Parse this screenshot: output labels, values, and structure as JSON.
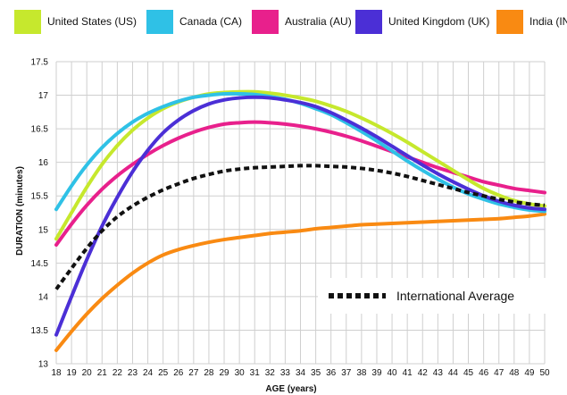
{
  "chart_data": {
    "type": "line",
    "title": "",
    "xlabel": "AGE (years)",
    "ylabel": "DURATION (minutes)",
    "xlim": [
      18,
      50
    ],
    "ylim": [
      13,
      17.5
    ],
    "x_ticks": [
      18,
      19,
      20,
      21,
      22,
      23,
      24,
      25,
      26,
      27,
      28,
      29,
      30,
      31,
      32,
      33,
      34,
      35,
      36,
      37,
      38,
      39,
      40,
      41,
      42,
      43,
      44,
      45,
      46,
      47,
      48,
      49,
      50
    ],
    "y_ticks": [
      "13",
      "13.5",
      "14",
      "14.5",
      "15",
      "15.5",
      "16",
      "16.5",
      "17",
      "17.5"
    ],
    "grid": true,
    "legend_position": "top",
    "x": [
      18,
      19,
      20,
      21,
      22,
      23,
      24,
      25,
      26,
      27,
      28,
      29,
      30,
      31,
      32,
      33,
      34,
      35,
      36,
      37,
      38,
      39,
      40,
      41,
      42,
      43,
      44,
      45,
      46,
      47,
      48,
      49,
      50
    ],
    "series": [
      {
        "name": "United States (US)",
        "color": "#c6e82d",
        "style": "solid",
        "values": [
          14.86,
          15.25,
          15.63,
          15.97,
          16.25,
          16.48,
          16.66,
          16.8,
          16.9,
          16.97,
          17.02,
          17.04,
          17.05,
          17.05,
          17.03,
          17.0,
          16.96,
          16.91,
          16.84,
          16.76,
          16.66,
          16.55,
          16.43,
          16.3,
          16.16,
          16.02,
          15.88,
          15.74,
          15.61,
          15.51,
          15.43,
          15.38,
          15.35
        ]
      },
      {
        "name": "Canada (CA)",
        "color": "#2fc1e6",
        "style": "solid",
        "values": [
          15.3,
          15.65,
          15.96,
          16.22,
          16.43,
          16.6,
          16.73,
          16.83,
          16.91,
          16.97,
          17.0,
          17.02,
          17.02,
          17.01,
          16.98,
          16.94,
          16.88,
          16.8,
          16.71,
          16.59,
          16.46,
          16.32,
          16.17,
          16.02,
          15.88,
          15.75,
          15.63,
          15.53,
          15.45,
          15.38,
          15.33,
          15.29,
          15.27
        ]
      },
      {
        "name": "Australia (AU)",
        "color": "#e8208c",
        "style": "solid",
        "values": [
          14.77,
          15.08,
          15.36,
          15.6,
          15.8,
          15.97,
          16.12,
          16.25,
          16.36,
          16.45,
          16.52,
          16.57,
          16.59,
          16.6,
          16.59,
          16.57,
          16.54,
          16.5,
          16.45,
          16.39,
          16.32,
          16.24,
          16.16,
          16.08,
          16.0,
          15.92,
          15.85,
          15.78,
          15.71,
          15.66,
          15.61,
          15.58,
          15.55
        ]
      },
      {
        "name": "United Kingdom (UK)",
        "color": "#4b2fd6",
        "style": "solid",
        "values": [
          13.43,
          14.0,
          14.55,
          15.05,
          15.48,
          15.86,
          16.18,
          16.44,
          16.63,
          16.77,
          16.87,
          16.93,
          16.96,
          16.97,
          16.96,
          16.93,
          16.89,
          16.83,
          16.74,
          16.63,
          16.51,
          16.38,
          16.24,
          16.1,
          15.96,
          15.83,
          15.71,
          15.6,
          15.5,
          15.42,
          15.36,
          15.32,
          15.3
        ]
      },
      {
        "name": "India (IN)",
        "color": "#f98a12",
        "style": "solid",
        "values": [
          13.2,
          13.48,
          13.74,
          13.97,
          14.17,
          14.35,
          14.5,
          14.62,
          14.7,
          14.76,
          14.81,
          14.85,
          14.88,
          14.91,
          14.94,
          14.96,
          14.98,
          15.01,
          15.03,
          15.05,
          15.07,
          15.08,
          15.09,
          15.1,
          15.11,
          15.12,
          15.13,
          15.14,
          15.15,
          15.16,
          15.18,
          15.2,
          15.23
        ]
      },
      {
        "name": "International Average",
        "color": "#111111",
        "style": "dotted",
        "values": [
          14.11,
          14.42,
          14.72,
          14.98,
          15.19,
          15.35,
          15.48,
          15.59,
          15.68,
          15.76,
          15.82,
          15.87,
          15.9,
          15.92,
          15.93,
          15.94,
          15.95,
          15.95,
          15.94,
          15.93,
          15.91,
          15.88,
          15.84,
          15.79,
          15.73,
          15.67,
          15.61,
          15.55,
          15.5,
          15.45,
          15.41,
          15.38,
          15.36
        ]
      }
    ]
  }
}
